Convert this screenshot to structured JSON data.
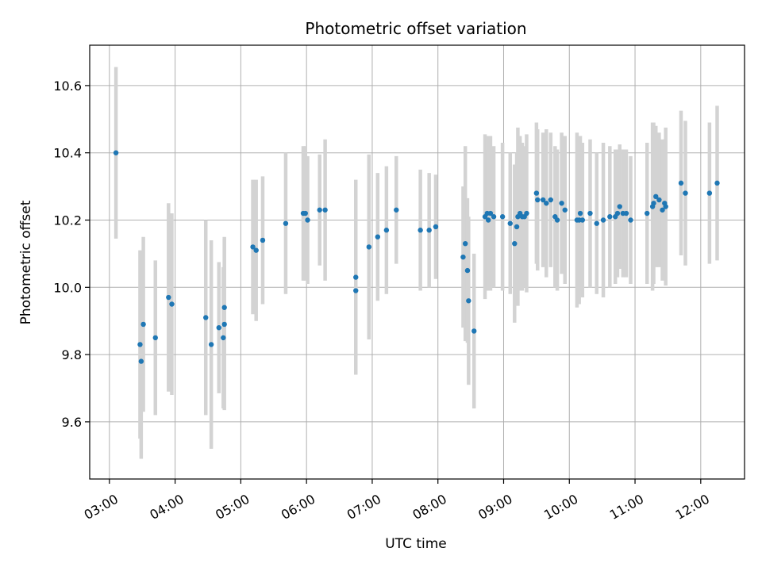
{
  "chart_data": {
    "type": "scatter",
    "title": "Photometric offset variation",
    "xlabel": "UTC time",
    "ylabel": "Photometric offset",
    "x_tick_labels": [
      "03:00",
      "04:00",
      "05:00",
      "06:00",
      "07:00",
      "08:00",
      "09:00",
      "10:00",
      "11:00",
      "12:00"
    ],
    "x_tick_hours": [
      3,
      4,
      5,
      6,
      7,
      8,
      9,
      10,
      11,
      12
    ],
    "y_ticks": [
      9.6,
      9.8,
      10.0,
      10.2,
      10.4,
      10.6
    ],
    "y_tick_labels": [
      "9.6",
      "9.8",
      "10.0",
      "10.2",
      "10.4",
      "10.6"
    ],
    "xlim": [
      "02:42",
      "12:40"
    ],
    "ylim": [
      9.43,
      10.72
    ],
    "grid": true,
    "point_color": "#1f77b4",
    "errorbar_color": "#d3d3d3",
    "series": [
      {
        "x": [
          "03:06",
          "03:28",
          "03:29",
          "03:31",
          "03:42",
          "03:54",
          "03:57",
          "04:28",
          "04:33",
          "04:40",
          "04:44",
          "04:45",
          "04:45",
          "05:11",
          "05:14",
          "05:20",
          "05:41",
          "05:57",
          "05:59",
          "06:01",
          "06:12",
          "06:17",
          "06:45",
          "06:45",
          "06:57",
          "07:05",
          "07:13",
          "07:22",
          "07:44",
          "07:52",
          "07:58",
          "08:23",
          "08:25",
          "08:27",
          "08:28",
          "08:33",
          "08:43",
          "08:45",
          "08:46",
          "08:48",
          "08:51",
          "08:59",
          "09:06",
          "09:10",
          "09:12",
          "09:13",
          "09:15",
          "09:17",
          "09:19",
          "09:21",
          "09:30",
          "09:31",
          "09:36",
          "09:39",
          "09:43",
          "09:47",
          "09:49",
          "09:53",
          "09:56",
          "10:07",
          "10:09",
          "10:10",
          "10:12",
          "10:19",
          "10:25",
          "10:31",
          "10:37",
          "10:42",
          "10:44",
          "10:46",
          "10:49",
          "10:52",
          "10:56",
          "11:11",
          "11:16",
          "11:17",
          "11:19",
          "11:22",
          "11:25",
          "11:27",
          "11:28",
          "11:42",
          "11:46",
          "12:08",
          "12:15"
        ],
        "y": [
          10.4,
          9.83,
          9.78,
          9.89,
          9.85,
          9.97,
          9.95,
          9.91,
          9.83,
          9.88,
          9.85,
          9.89,
          9.94,
          10.12,
          10.11,
          10.14,
          10.19,
          10.22,
          10.22,
          10.2,
          10.23,
          10.23,
          10.03,
          9.99,
          10.12,
          10.15,
          10.17,
          10.23,
          10.17,
          10.17,
          10.18,
          10.09,
          10.13,
          10.05,
          9.96,
          9.87,
          10.21,
          10.22,
          10.2,
          10.22,
          10.21,
          10.21,
          10.19,
          10.13,
          10.18,
          10.21,
          10.22,
          10.21,
          10.21,
          10.22,
          10.28,
          10.26,
          10.26,
          10.25,
          10.26,
          10.21,
          10.2,
          10.25,
          10.23,
          10.2,
          10.2,
          10.22,
          10.2,
          10.22,
          10.19,
          10.2,
          10.21,
          10.21,
          10.22,
          10.24,
          10.22,
          10.22,
          10.2,
          10.22,
          10.24,
          10.25,
          10.27,
          10.26,
          10.23,
          10.25,
          10.24,
          10.31,
          10.28,
          10.28,
          10.31
        ],
        "yerr": [
          0.255,
          0.28,
          0.29,
          0.26,
          0.23,
          0.28,
          0.27,
          0.29,
          0.31,
          0.195,
          0.21,
          0.255,
          0.21,
          0.2,
          0.21,
          0.19,
          0.21,
          0.2,
          0.2,
          0.19,
          0.165,
          0.21,
          0.29,
          0.23,
          0.275,
          0.19,
          0.19,
          0.16,
          0.18,
          0.17,
          0.155,
          0.21,
          0.29,
          0.215,
          0.25,
          0.23,
          0.245,
          0.23,
          0.21,
          0.23,
          0.21,
          0.22,
          0.21,
          0.235,
          0.22,
          0.265,
          0.23,
          0.22,
          0.21,
          0.235,
          0.21,
          0.21,
          0.2,
          0.22,
          0.2,
          0.21,
          0.21,
          0.21,
          0.22,
          0.26,
          0.25,
          0.23,
          0.23,
          0.22,
          0.21,
          0.23,
          0.21,
          0.2,
          0.19,
          0.185,
          0.19,
          0.19,
          0.19,
          0.21,
          0.25,
          0.24,
          0.21,
          0.2,
          0.21,
          0.19,
          0.235,
          0.215,
          0.215,
          0.21,
          0.23
        ]
      }
    ]
  }
}
